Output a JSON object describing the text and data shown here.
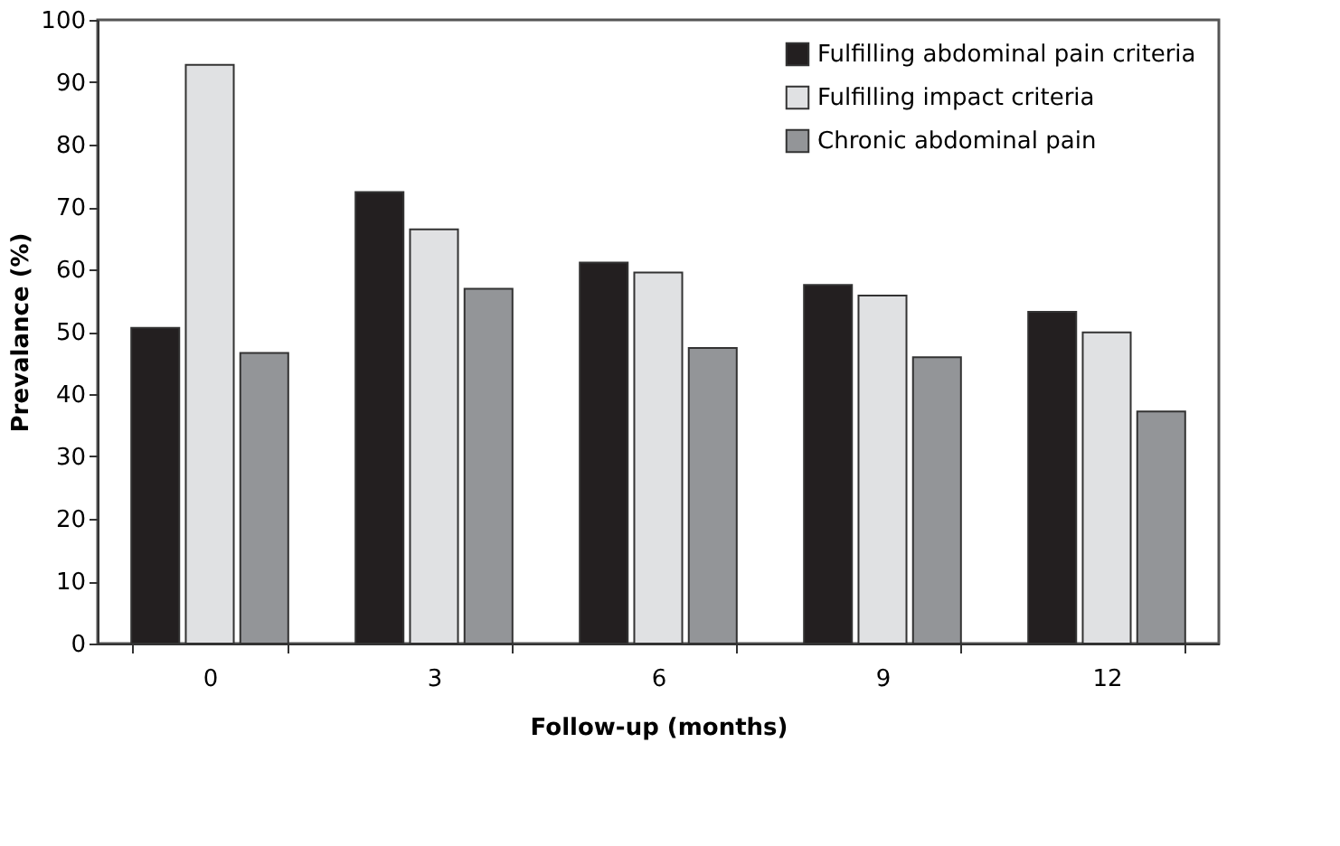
{
  "chart_data": {
    "type": "bar",
    "xlabel": "Follow-up (months)",
    "ylabel": "Prevalance (%)",
    "categories": [
      "0",
      "3",
      "6",
      "9",
      "12"
    ],
    "series": [
      {
        "name": "Fulfilling abdominal pain criteria",
        "color": "#231f20",
        "values": [
          50.6,
          72.4,
          61.1,
          57.5,
          53.2
        ]
      },
      {
        "name": "Fulfilling impact criteria",
        "color": "#e0e1e3",
        "values": [
          92.8,
          66.4,
          59.5,
          55.8,
          49.9
        ]
      },
      {
        "name": "Chronic abdominal pain",
        "color": "#939598",
        "values": [
          46.6,
          56.9,
          47.4,
          45.9,
          37.2
        ]
      }
    ],
    "ylim": [
      0,
      100
    ],
    "yticks": [
      0,
      10,
      20,
      30,
      40,
      50,
      60,
      70,
      80,
      90,
      100
    ],
    "grid": false,
    "legend": "top right"
  }
}
